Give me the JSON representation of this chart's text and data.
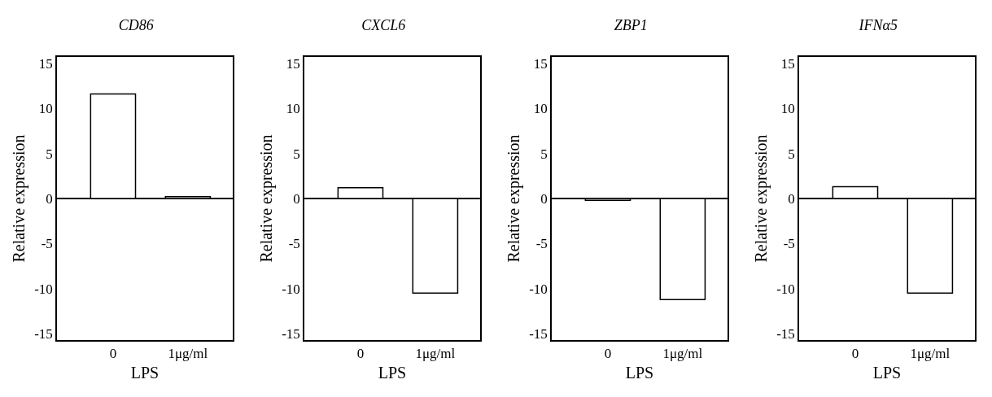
{
  "chart_data": [
    {
      "type": "bar",
      "title": "CD86",
      "xlabel": "LPS",
      "ylabel": "Relative expression",
      "categories": [
        "0",
        "1μg/ml"
      ],
      "values": [
        11.6,
        0.2
      ],
      "color": "#ffffff",
      "ylim": [
        -15.7,
        15.7
      ],
      "yticks": [
        -15,
        -10,
        -5,
        0,
        5,
        10,
        15
      ]
    },
    {
      "type": "bar",
      "title": "CXCL6",
      "xlabel": "LPS",
      "ylabel": "Relative expression",
      "categories": [
        "0",
        "1μg/ml"
      ],
      "values": [
        1.2,
        -10.5
      ],
      "color": "#ffffff",
      "ylim": [
        -15.7,
        15.7
      ],
      "yticks": [
        -15,
        -10,
        -5,
        0,
        5,
        10,
        15
      ]
    },
    {
      "type": "bar",
      "title": "ZBP1",
      "xlabel": "LPS",
      "ylabel": "Relative expression",
      "categories": [
        "0",
        "1μg/ml"
      ],
      "values": [
        -0.2,
        -11.2
      ],
      "color": "#ffffff",
      "ylim": [
        -15.7,
        15.7
      ],
      "yticks": [
        -15,
        -10,
        -5,
        0,
        5,
        10,
        15
      ]
    },
    {
      "type": "bar",
      "title": "IFNα5",
      "xlabel": "LPS",
      "ylabel": "Relative expression",
      "categories": [
        "0",
        "1μg/ml"
      ],
      "values": [
        1.3,
        -10.5
      ],
      "color": "#ffffff",
      "ylim": [
        -15.7,
        15.7
      ],
      "yticks": [
        -15,
        -10,
        -5,
        0,
        5,
        10,
        15
      ]
    }
  ]
}
